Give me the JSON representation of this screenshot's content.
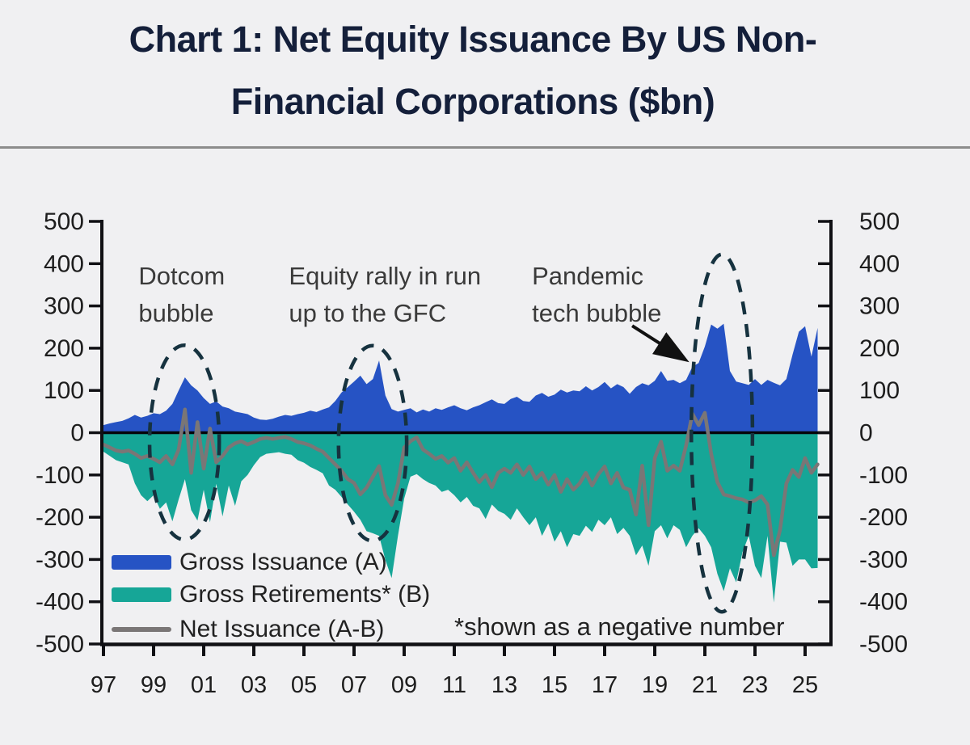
{
  "title": {
    "line1": "Chart 1: Net Equity Issuance By US Non-",
    "line2": "Financial Corporations ($bn)"
  },
  "legend": [
    {
      "label": "Gross Issuance (A)",
      "color": "#2653c4",
      "type": "area"
    },
    {
      "label": "Gross Retirements* (B)",
      "color": "#16a697",
      "type": "area"
    },
    {
      "label": "Net Issuance (A-B)",
      "color": "#7a7676",
      "type": "line"
    }
  ],
  "footnote": "*shown as a negative number",
  "colors": {
    "background": "#f0f0f2",
    "title": "#141f3a",
    "axis": "#101014",
    "tick_label": "#1d1d1d",
    "annotation_text": "#3a3a3a",
    "annotation_ellipse": "#16323f",
    "separator": "#8c8c8c"
  },
  "chart_data": {
    "type": "area",
    "title": "Net Equity Issuance By US Non-Financial Corporations ($bn)",
    "xlabel": "",
    "ylabel": "$bn",
    "x_start": 1997.0,
    "x_step": 0.25,
    "x_end": 2025.5,
    "ylim": [
      -500,
      500
    ],
    "grid": false,
    "legend_position": "inside-bottom-left",
    "yticks": [
      500,
      400,
      300,
      200,
      100,
      0,
      -100,
      -200,
      -300,
      -400,
      -500
    ],
    "xtick_years": [
      1997,
      1999,
      2001,
      2003,
      2005,
      2007,
      2009,
      2011,
      2013,
      2015,
      2017,
      2019,
      2021,
      2023,
      2025
    ],
    "xtick_labels": [
      "97",
      "99",
      "01",
      "03",
      "05",
      "07",
      "09",
      "11",
      "13",
      "15",
      "17",
      "19",
      "21",
      "23",
      "25"
    ],
    "series": [
      {
        "name": "Gross Issuance (A)",
        "type": "area",
        "color": "#2653c4",
        "values": [
          18,
          22,
          25,
          28,
          34,
          42,
          36,
          40,
          46,
          44,
          52,
          68,
          100,
          131,
          112,
          100,
          82,
          68,
          74,
          62,
          58,
          50,
          47,
          44,
          36,
          31,
          30,
          33,
          38,
          42,
          40,
          44,
          47,
          52,
          49,
          55,
          60,
          75,
          95,
          108,
          121,
          135,
          115,
          127,
          171,
          88,
          56,
          50,
          54,
          58,
          48,
          55,
          50,
          58,
          54,
          60,
          65,
          58,
          53,
          60,
          65,
          72,
          79,
          70,
          68,
          80,
          85,
          75,
          73,
          88,
          94,
          85,
          90,
          102,
          95,
          100,
          98,
          110,
          100,
          108,
          120,
          105,
          115,
          108,
          92,
          108,
          117,
          112,
          123,
          146,
          123,
          125,
          117,
          125,
          156,
          165,
          204,
          256,
          246,
          258,
          146,
          121,
          117,
          113,
          127,
          113,
          125,
          118,
          112,
          127,
          185,
          239,
          252,
          180,
          248
        ]
      },
      {
        "name": "Gross Retirements* (B)",
        "type": "area",
        "color": "#16a697",
        "values": [
          -45,
          -55,
          -65,
          -70,
          -75,
          -120,
          -148,
          -162,
          -148,
          -180,
          -165,
          -210,
          -158,
          -110,
          -183,
          -208,
          -135,
          -212,
          -121,
          -198,
          -125,
          -173,
          -115,
          -100,
          -77,
          -58,
          -50,
          -48,
          -46,
          -50,
          -52,
          -65,
          -71,
          -81,
          -88,
          -96,
          -125,
          -135,
          -152,
          -170,
          -187,
          -206,
          -233,
          -238,
          -244,
          -302,
          -344,
          -244,
          -156,
          -104,
          -98,
          -110,
          -119,
          -125,
          -140,
          -135,
          -148,
          -165,
          -152,
          -173,
          -179,
          -204,
          -170,
          -185,
          -192,
          -206,
          -179,
          -200,
          -219,
          -200,
          -244,
          -215,
          -258,
          -233,
          -271,
          -240,
          -244,
          -220,
          -235,
          -206,
          -219,
          -200,
          -240,
          -225,
          -244,
          -290,
          -267,
          -315,
          -233,
          -219,
          -250,
          -219,
          -230,
          -271,
          -244,
          -226,
          -244,
          -271,
          -334,
          -375,
          -321,
          -354,
          -283,
          -244,
          -315,
          -344,
          -244,
          -402,
          -258,
          -260,
          -315,
          -300,
          -300,
          -321,
          -320
        ]
      },
      {
        "name": "Net Issuance (A-B)",
        "type": "line",
        "color": "#7a7676",
        "values": [
          -28,
          -35,
          -42,
          -45,
          -42,
          -50,
          -60,
          -55,
          -62,
          -70,
          -55,
          -75,
          -40,
          55,
          -95,
          25,
          -85,
          10,
          -70,
          -55,
          -35,
          -25,
          -20,
          -28,
          -22,
          -15,
          -12,
          -15,
          -12,
          -10,
          -15,
          -22,
          -25,
          -30,
          -38,
          -45,
          -60,
          -75,
          -90,
          -110,
          -119,
          -146,
          -130,
          -104,
          -79,
          -148,
          -171,
          -120,
          -35,
          -20,
          -11,
          -40,
          -50,
          -62,
          -55,
          -71,
          -60,
          -90,
          -70,
          -95,
          -117,
          -100,
          -129,
          -95,
          -85,
          -95,
          -75,
          -100,
          -80,
          -110,
          -95,
          -123,
          -100,
          -140,
          -110,
          -135,
          -120,
          -95,
          -125,
          -98,
          -80,
          -120,
          -95,
          -130,
          -135,
          -194,
          -78,
          -219,
          -60,
          -21,
          -90,
          -78,
          -90,
          -30,
          45,
          18,
          47,
          -50,
          -117,
          -146,
          -150,
          -155,
          -158,
          -165,
          -160,
          -150,
          -170,
          -290,
          -230,
          -120,
          -88,
          -105,
          -60,
          -95,
          -75
        ]
      }
    ],
    "annotations": {
      "texts": [
        {
          "lines": [
            "Dotcom",
            "bubble"
          ],
          "x_year": 1998.4,
          "y_value": 351
        },
        {
          "lines": [
            "Equity rally in run",
            "up to the GFC"
          ],
          "x_year": 2004.4,
          "y_value": 351
        },
        {
          "lines": [
            "Pandemic",
            "tech bubble"
          ],
          "x_year": 2014.1,
          "y_value": 351
        }
      ],
      "ellipses": [
        {
          "label": "dotcom-bubble",
          "cx_year": 2000.23,
          "cy_value": -23,
          "rx_years": 1.39,
          "ry_units": 230
        },
        {
          "label": "gfc-rally",
          "cx_year": 2007.74,
          "cy_value": -25,
          "rx_years": 1.36,
          "ry_units": 231
        },
        {
          "label": "pandemic-tech-bubble",
          "cx_year": 2021.68,
          "cy_value": -1,
          "rx_years": 1.22,
          "ry_units": 423
        }
      ],
      "arrow": {
        "x1_year": 2018.1,
        "y1_value": 253,
        "x2_year": 2020.16,
        "y2_value": 175
      }
    }
  }
}
